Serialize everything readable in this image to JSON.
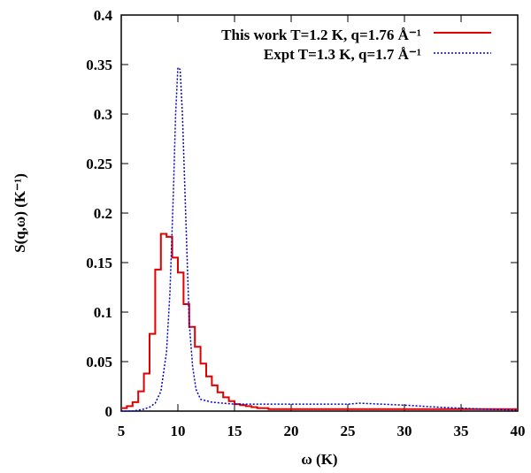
{
  "chart_data": {
    "type": "line",
    "xlabel": "ω (K)",
    "ylabel": "S(q,ω) (K⁻¹)",
    "xlim": [
      5,
      40
    ],
    "ylim": [
      0,
      0.4
    ],
    "xticks": [
      5,
      10,
      15,
      20,
      25,
      30,
      35,
      40
    ],
    "yticks": [
      0,
      0.05,
      0.1,
      0.15,
      0.2,
      0.25,
      0.3,
      0.35,
      0.4
    ],
    "xtick_labels": [
      "5",
      "10",
      "15",
      "20",
      "25",
      "30",
      "35",
      "40"
    ],
    "ytick_labels": [
      "0",
      "0.05",
      "0.1",
      "0.15",
      "0.2",
      "0.25",
      "0.3",
      "0.35",
      "0.4"
    ],
    "grid": false,
    "legend_position": "top-right",
    "series": [
      {
        "name": "This work T=1.2 K, q=1.76 Å⁻¹",
        "color": "#e00000",
        "style": "step",
        "bin_edges": [
          5,
          5.5,
          6,
          6.5,
          7,
          7.5,
          8,
          8.5,
          9,
          9.5,
          10,
          10.5,
          11,
          11.5,
          12,
          12.5,
          13,
          13.5,
          14,
          14.5,
          15,
          15.5,
          16,
          16.5,
          17,
          17.5,
          18,
          18.5,
          40
        ],
        "values": [
          0.003,
          0.005,
          0.009,
          0.02,
          0.038,
          0.078,
          0.143,
          0.179,
          0.176,
          0.155,
          0.14,
          0.108,
          0.085,
          0.065,
          0.048,
          0.035,
          0.026,
          0.019,
          0.014,
          0.01,
          0.007,
          0.006,
          0.005,
          0.004,
          0.003,
          0.003,
          0.002,
          0.002
        ]
      },
      {
        "name": "Expt T=1.3 K, q=1.7 Å⁻¹",
        "color": "#0000cc",
        "style": "dotted",
        "x": [
          5,
          6,
          7,
          7.5,
          8,
          8.5,
          9,
          9.3,
          9.6,
          9.8,
          10,
          10.2,
          10.4,
          10.6,
          10.8,
          11,
          11.3,
          11.6,
          12,
          13,
          15,
          17,
          20,
          23,
          25,
          26,
          28,
          30,
          33,
          35,
          37,
          40
        ],
        "y": [
          0.0,
          0.0,
          0.002,
          0.004,
          0.008,
          0.02,
          0.06,
          0.12,
          0.22,
          0.3,
          0.347,
          0.345,
          0.3,
          0.23,
          0.16,
          0.09,
          0.045,
          0.022,
          0.012,
          0.009,
          0.007,
          0.007,
          0.007,
          0.007,
          0.007,
          0.008,
          0.007,
          0.006,
          0.004,
          0.003,
          0.002,
          0.001
        ]
      }
    ]
  }
}
